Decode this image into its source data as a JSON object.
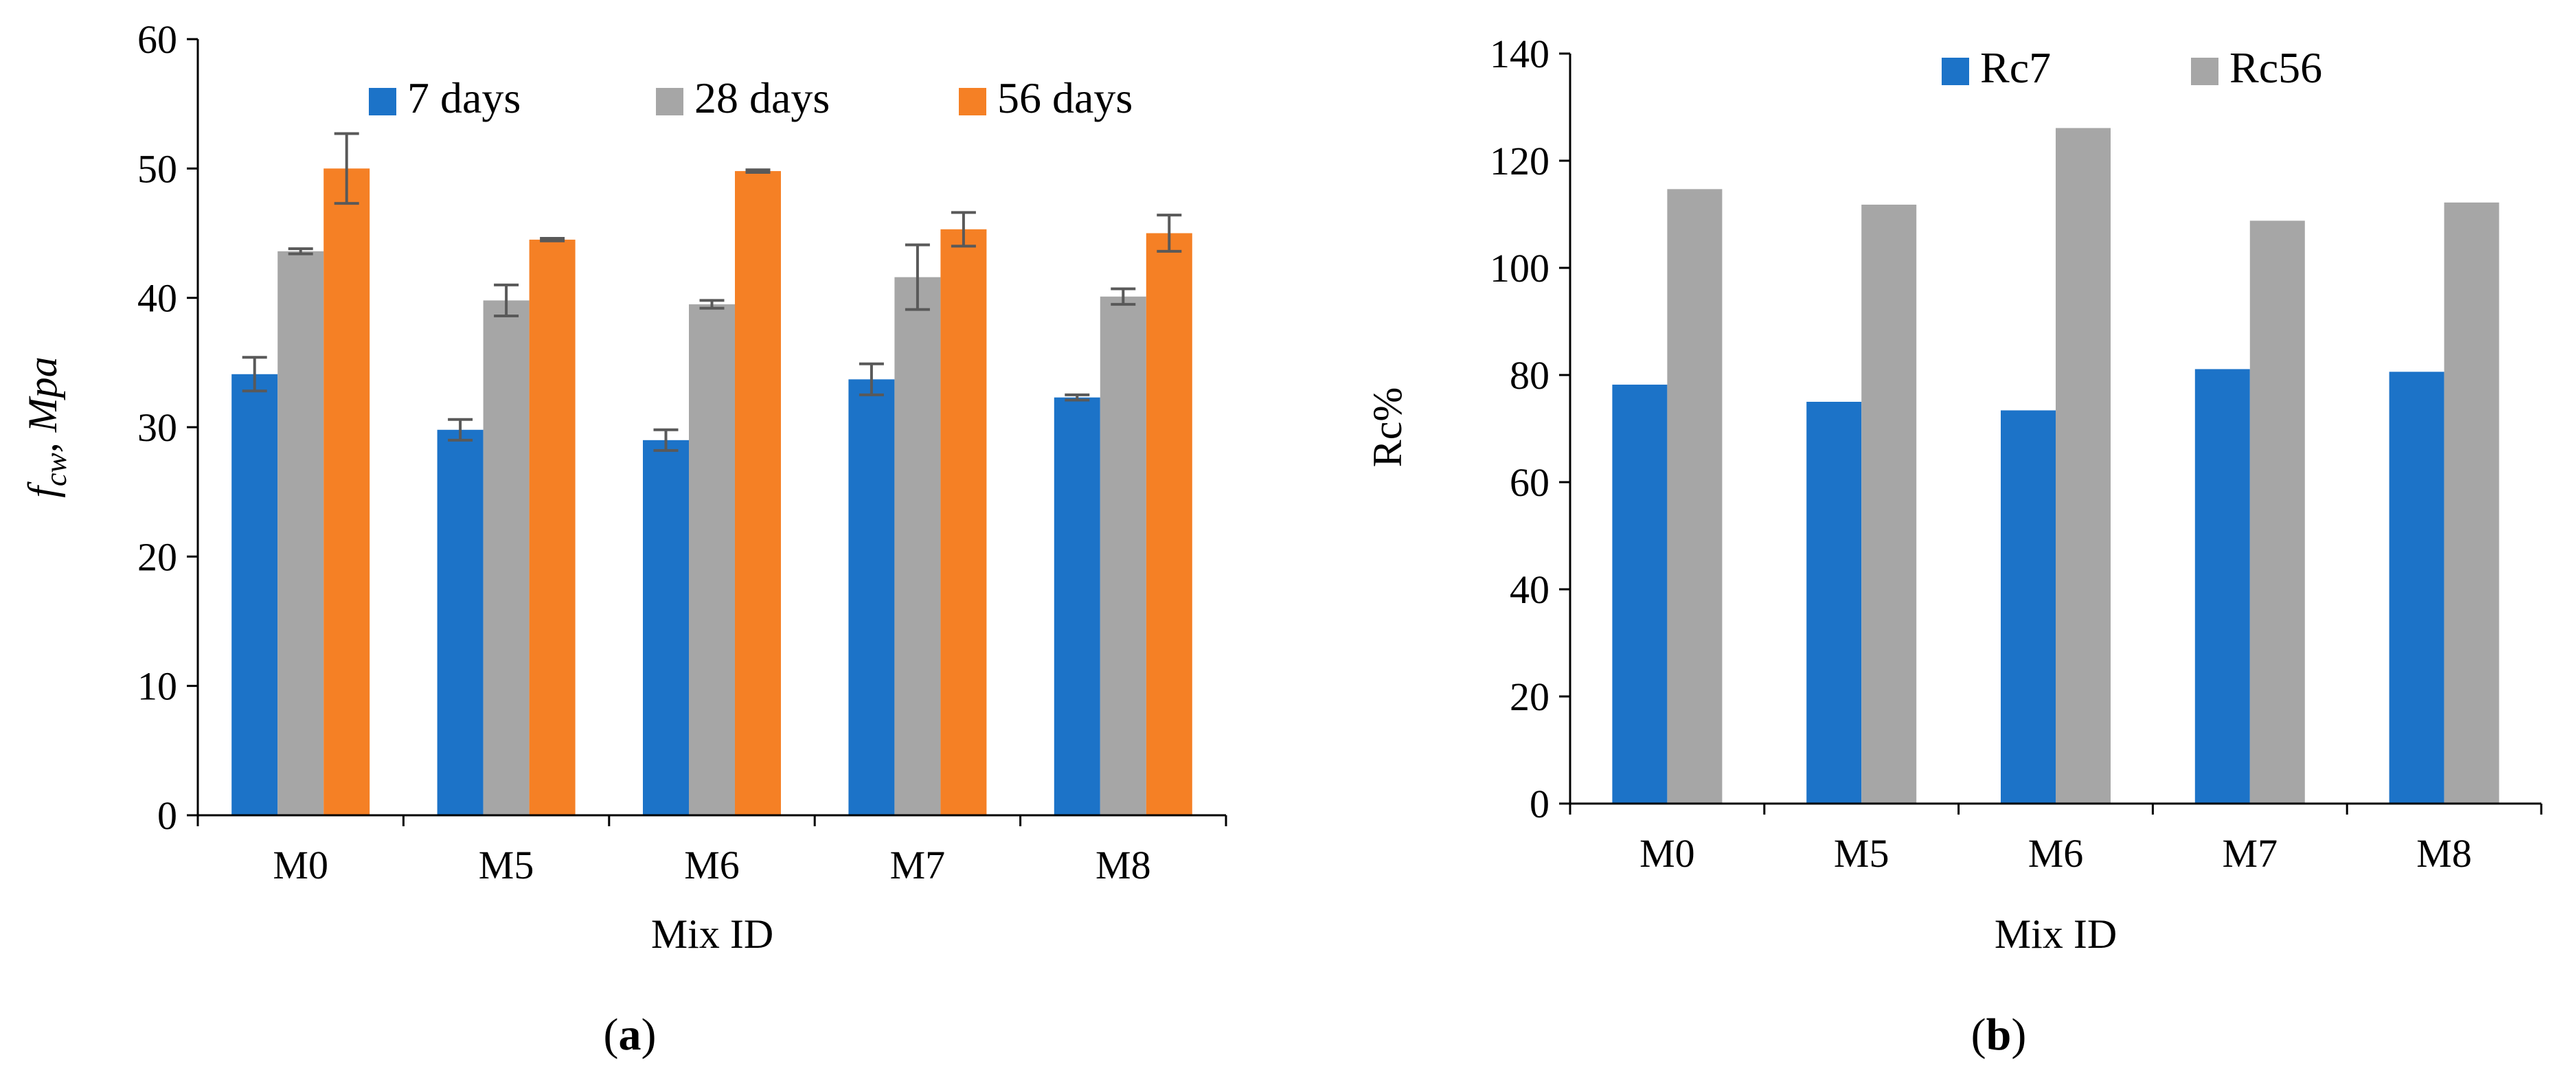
{
  "chart_data": [
    {
      "type": "bar",
      "categories": [
        "M0",
        "M5",
        "M6",
        "M7",
        "M8"
      ],
      "series": [
        {
          "name": "7 days",
          "color": "#1c73c8",
          "values": [
            34.1,
            29.8,
            29.0,
            33.7,
            32.3
          ],
          "errors": [
            1.3,
            0.8,
            0.8,
            1.2,
            0.2
          ]
        },
        {
          "name": "28 days",
          "color": "#a6a6a6",
          "values": [
            43.6,
            39.8,
            39.5,
            41.6,
            40.1
          ],
          "errors": [
            0.2,
            1.2,
            0.3,
            2.5,
            0.6
          ]
        },
        {
          "name": "56 days",
          "color": "#f58025",
          "values": [
            50.0,
            44.5,
            49.8,
            45.3,
            45.0
          ],
          "errors": [
            2.7,
            0.1,
            0.1,
            1.3,
            1.4
          ]
        }
      ],
      "xlabel": "Mix ID",
      "ylabel_main": "f",
      "ylabel_sub": "cw",
      "ylabel_rest": ", Mpa",
      "ylim": [
        0,
        60
      ],
      "yticks": [
        0,
        10,
        20,
        30,
        40,
        50,
        60
      ],
      "legend_position": "top",
      "grid": false,
      "caption_open": "(",
      "caption_letter": "a",
      "caption_close": ")"
    },
    {
      "type": "bar",
      "categories": [
        "M0",
        "M5",
        "M6",
        "M7",
        "M8"
      ],
      "series": [
        {
          "name": "Rc7",
          "color": "#1c73c8",
          "values": [
            78.2,
            75.0,
            73.4,
            81.1,
            80.6
          ]
        },
        {
          "name": "Rc56",
          "color": "#a6a6a6",
          "values": [
            114.7,
            111.8,
            126.1,
            108.8,
            112.2
          ]
        }
      ],
      "xlabel": "Mix ID",
      "ylabel": "Rc%",
      "ylim": [
        0,
        140
      ],
      "yticks": [
        0,
        20,
        40,
        60,
        80,
        100,
        120,
        140
      ],
      "legend_position": "top",
      "grid": false,
      "caption_open": "(",
      "caption_letter": "b",
      "caption_close": ")"
    }
  ]
}
